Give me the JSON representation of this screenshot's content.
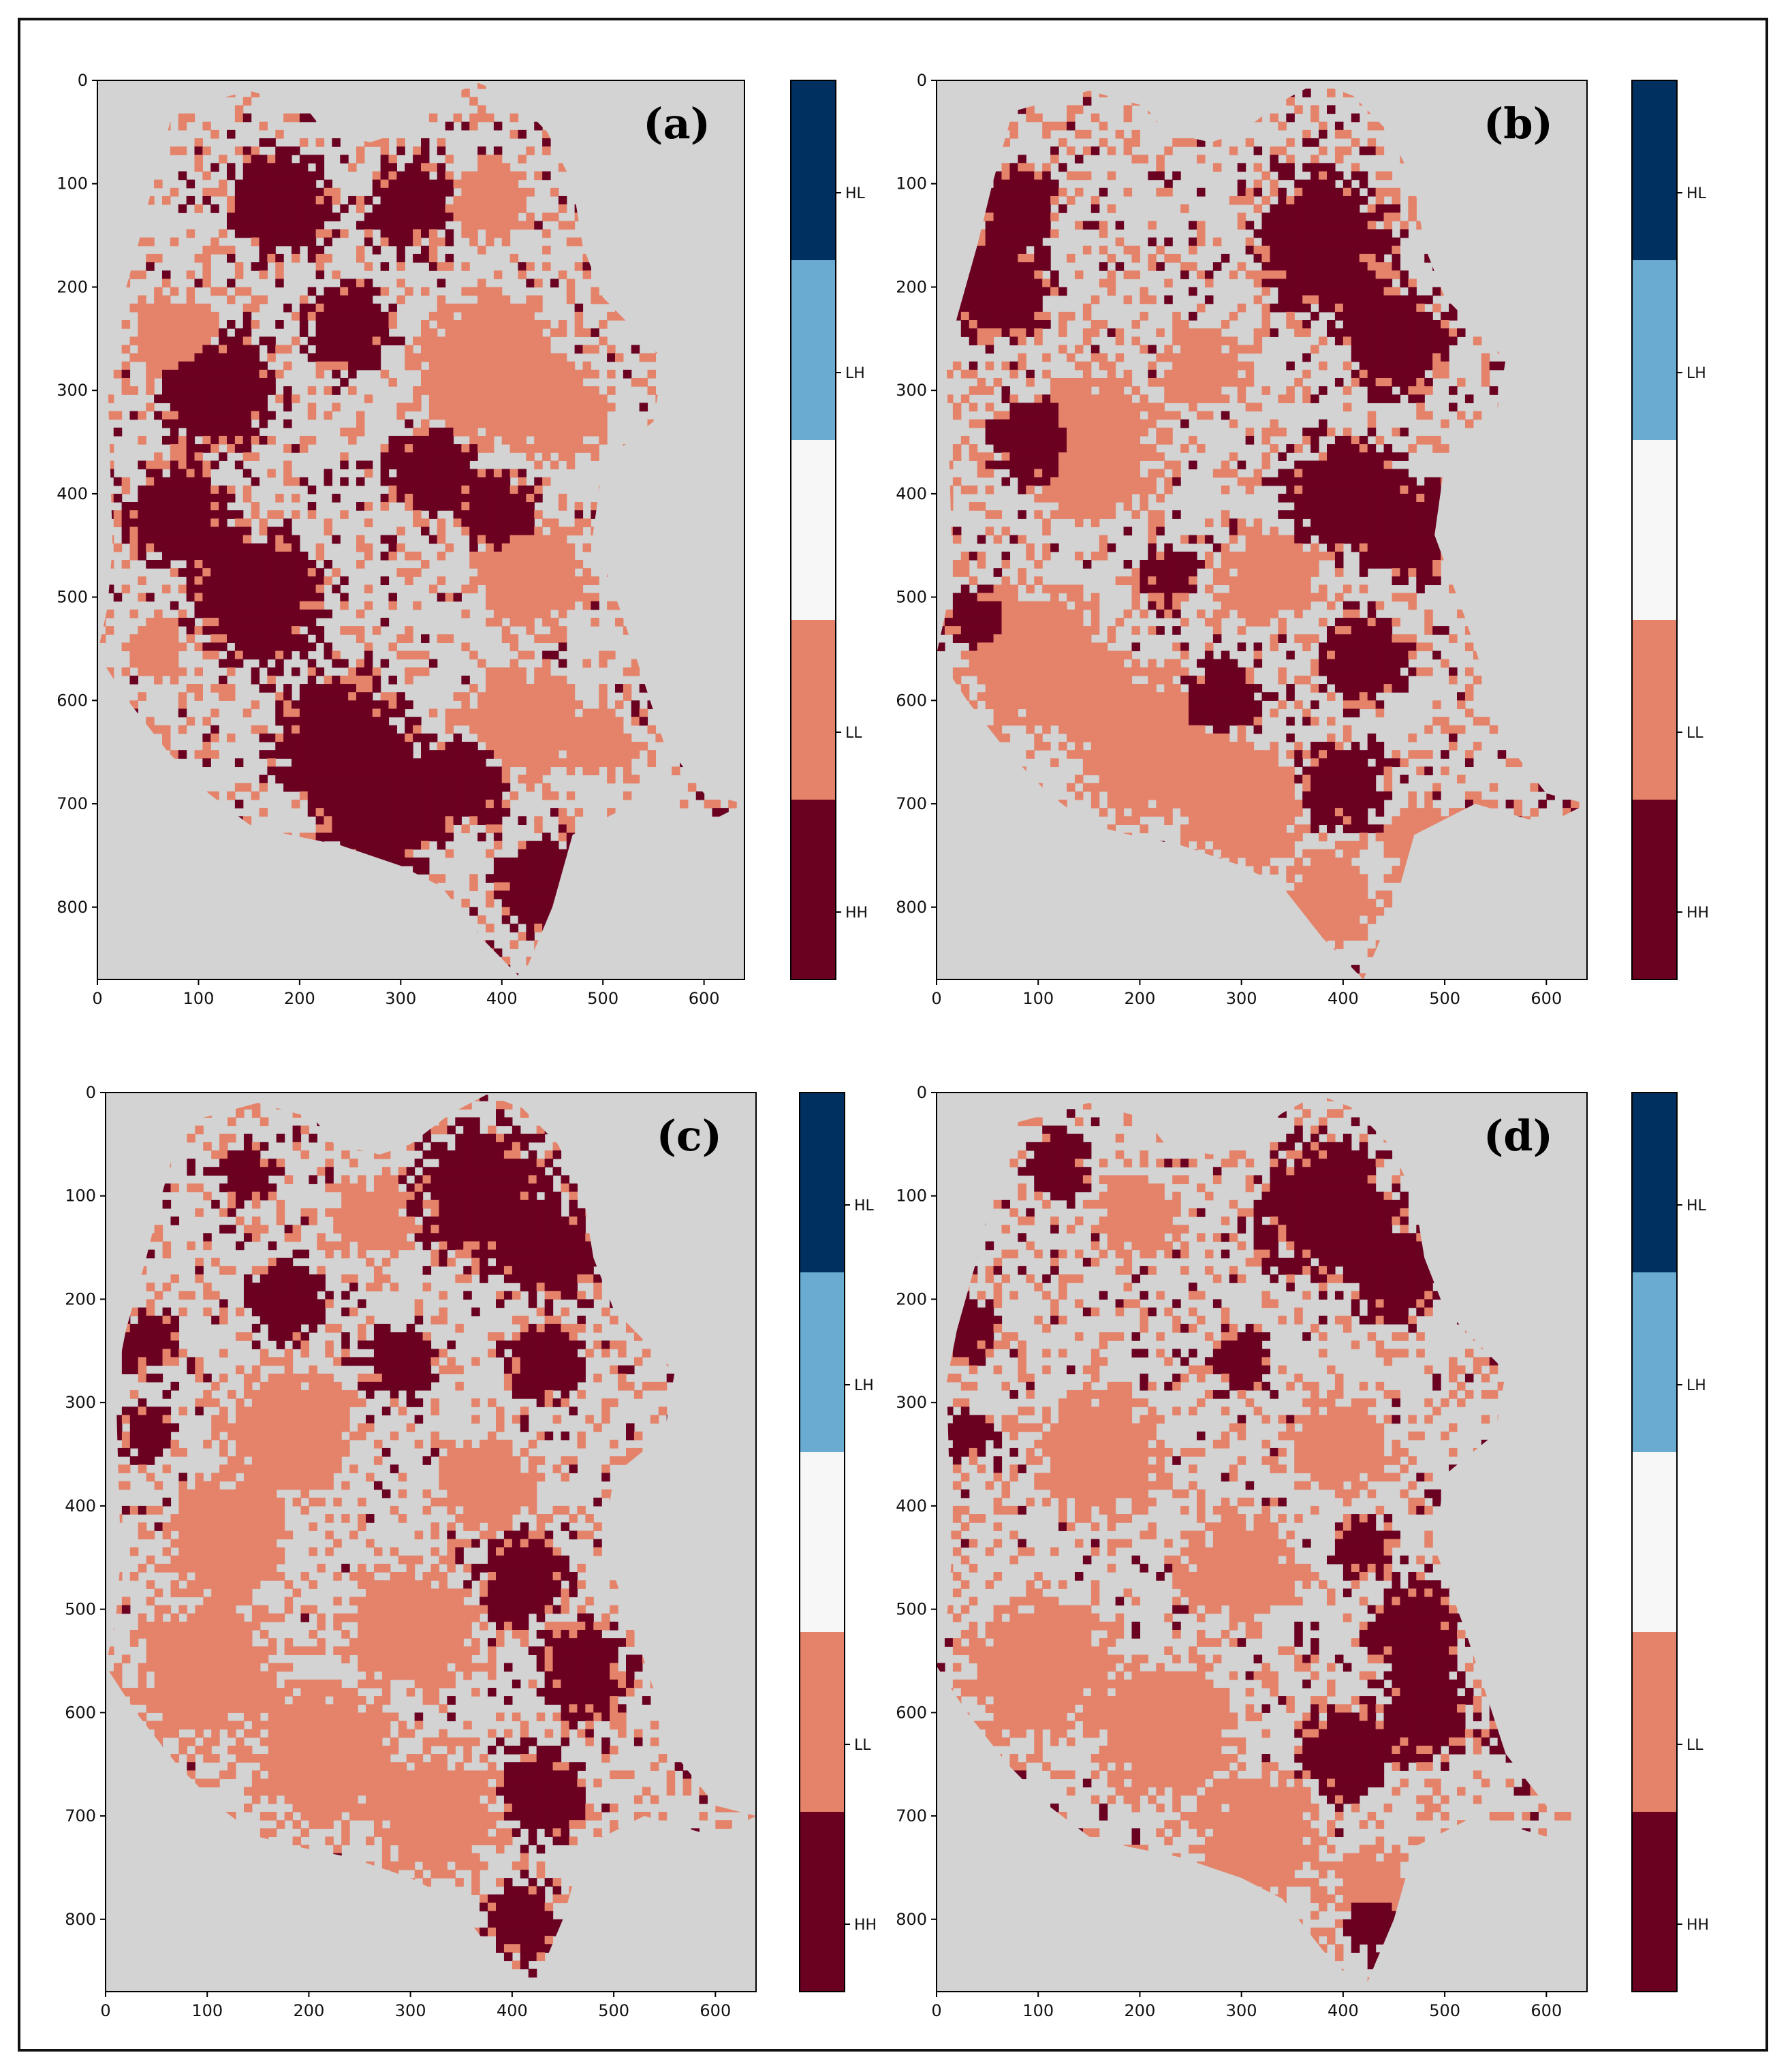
{
  "chart_data": [
    {
      "type": "heatmap",
      "panel_label": "(a)",
      "x": {
        "lim": [
          0,
          640
        ],
        "ticks": [
          0,
          100,
          200,
          300,
          400,
          500,
          600
        ]
      },
      "y": {
        "lim": [
          870,
          0
        ],
        "ticks": [
          0,
          100,
          200,
          300,
          400,
          500,
          600,
          700,
          800
        ],
        "inverted": true
      },
      "categories": [
        {
          "label": "HL",
          "color": "#00305f"
        },
        {
          "label": "LH",
          "color": "#6aabd2"
        },
        {
          "label": "",
          "color": "#f7f7f7"
        },
        {
          "label": "LL",
          "color": "#e5836a"
        },
        {
          "label": "HH",
          "color": "#6b0121"
        }
      ],
      "background_color": "#d3d3d3",
      "dominant_pattern": "HH concentrated in west, center and south; LL concentrated in north-west and east"
    },
    {
      "type": "heatmap",
      "panel_label": "(b)",
      "x": {
        "lim": [
          0,
          640
        ],
        "ticks": [
          0,
          100,
          200,
          300,
          400,
          500,
          600
        ]
      },
      "y": {
        "lim": [
          870,
          0
        ],
        "ticks": [
          0,
          100,
          200,
          300,
          400,
          500,
          600,
          700,
          800
        ],
        "inverted": true
      },
      "categories": [
        {
          "label": "HL",
          "color": "#00305f"
        },
        {
          "label": "LH",
          "color": "#6aabd2"
        },
        {
          "label": "",
          "color": "#f7f7f7"
        },
        {
          "label": "LL",
          "color": "#e5836a"
        },
        {
          "label": "HH",
          "color": "#6b0121"
        }
      ],
      "background_color": "#d3d3d3",
      "dominant_pattern": "HH concentrated in north-west and east; LL concentrated in south-west"
    },
    {
      "type": "heatmap",
      "panel_label": "(c)",
      "x": {
        "lim": [
          0,
          640
        ],
        "ticks": [
          0,
          100,
          200,
          300,
          400,
          500,
          600
        ]
      },
      "y": {
        "lim": [
          870,
          0
        ],
        "ticks": [
          0,
          100,
          200,
          300,
          400,
          500,
          600,
          700,
          800
        ],
        "inverted": true
      },
      "categories": [
        {
          "label": "HL",
          "color": "#00305f"
        },
        {
          "label": "LH",
          "color": "#6aabd2"
        },
        {
          "label": "",
          "color": "#f7f7f7"
        },
        {
          "label": "LL",
          "color": "#e5836a"
        },
        {
          "label": "HH",
          "color": "#6b0121"
        }
      ],
      "background_color": "#d3d3d3",
      "dominant_pattern": "HH concentrated in north-east and east; LL covering south and west"
    },
    {
      "type": "heatmap",
      "panel_label": "(d)",
      "x": {
        "lim": [
          0,
          640
        ],
        "ticks": [
          0,
          100,
          200,
          300,
          400,
          500,
          600
        ]
      },
      "y": {
        "lim": [
          870,
          0
        ],
        "ticks": [
          0,
          100,
          200,
          300,
          400,
          500,
          600,
          700,
          800
        ],
        "inverted": true
      },
      "categories": [
        {
          "label": "HL",
          "color": "#00305f"
        },
        {
          "label": "LH",
          "color": "#6aabd2"
        },
        {
          "label": "",
          "color": "#f7f7f7"
        },
        {
          "label": "LL",
          "color": "#e5836a"
        },
        {
          "label": "HH",
          "color": "#6b0121"
        }
      ],
      "background_color": "#d3d3d3",
      "dominant_pattern": "HH concentrated in north-east and east; LL covering south-west and center"
    }
  ]
}
